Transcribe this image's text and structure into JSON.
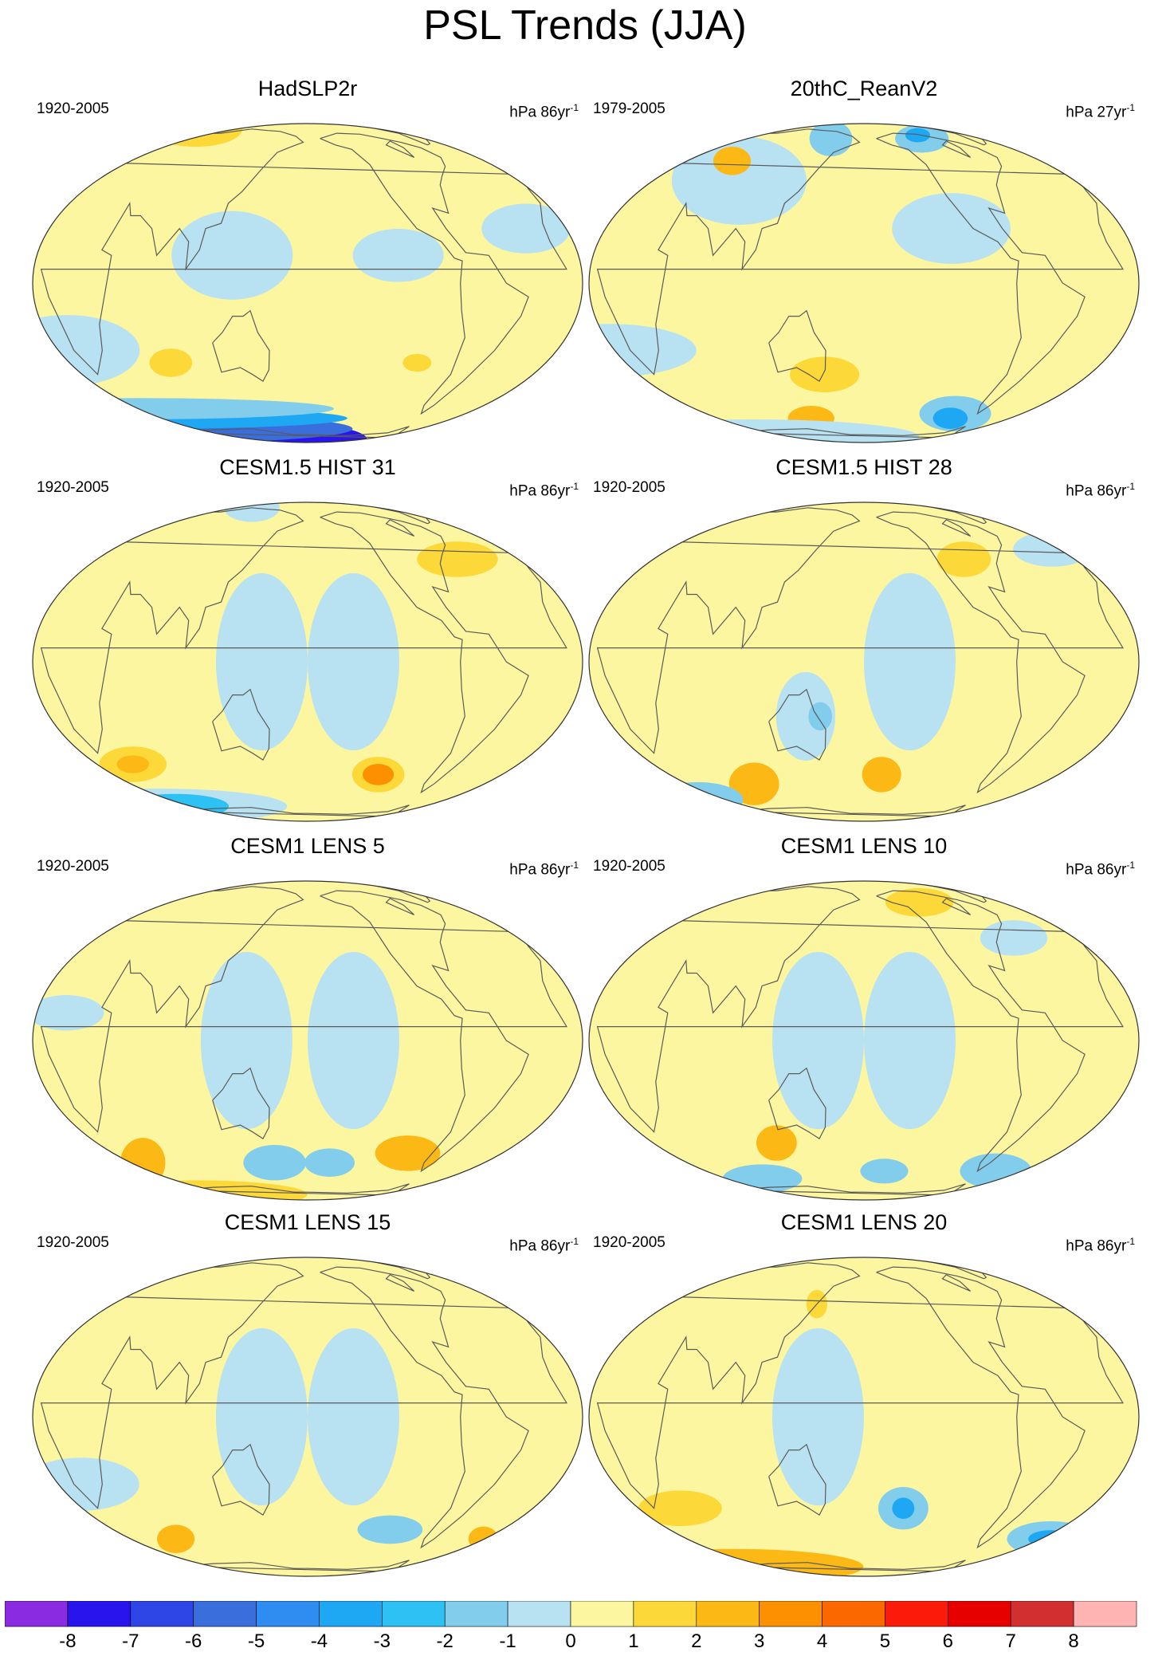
{
  "title": "PSL Trends (JJA)",
  "colors": {
    "levels": [
      -8,
      -7,
      -6,
      -5,
      -4,
      -3,
      -2,
      -1,
      0,
      1,
      2,
      3,
      4,
      5,
      6,
      7,
      8
    ],
    "fills": [
      "#8a2be2",
      "#2a14ee",
      "#2e46e6",
      "#3a6edc",
      "#2f8cf0",
      "#1ea8f4",
      "#2ec2f4",
      "#82ccec",
      "#b8e2f2",
      "#fdf6a0",
      "#fcd838",
      "#fcb814",
      "#fc9000",
      "#fc6800",
      "#fc1a0a",
      "#e60000",
      "#d23030",
      "#ffb4b4"
    ],
    "coast": "#5a5a5a"
  },
  "panels": [
    {
      "title": "HadSLP2r",
      "period": "1920-2005",
      "units_base": "hPa 86yr",
      "units_exp": "-1",
      "blobs": [
        {
          "lon": 0,
          "lat": -78,
          "rx": 180,
          "ry": 12,
          "lev": -8
        },
        {
          "lon": 0,
          "lat": -66,
          "rx": 180,
          "ry": 8,
          "lev": -6
        },
        {
          "lon": 10,
          "lat": -58,
          "rx": 175,
          "ry": 6,
          "lev": -4
        },
        {
          "lon": 20,
          "lat": -52,
          "rx": 160,
          "ry": 6,
          "lev": -2
        },
        {
          "lon": 10,
          "lat": -25,
          "rx": 50,
          "ry": 20,
          "lev": -1
        },
        {
          "lon": -30,
          "lat": 20,
          "rx": 30,
          "ry": 14,
          "lev": -1
        },
        {
          "lon": 0,
          "lat": 75,
          "rx": 50,
          "ry": 10,
          "lev": 1
        },
        {
          "lon": -120,
          "lat": 10,
          "rx": 30,
          "ry": 15,
          "lev": -1
        },
        {
          "lon": 130,
          "lat": 10,
          "rx": 40,
          "ry": 25,
          "lev": -1
        },
        {
          "lon": -100,
          "lat": -30,
          "rx": 10,
          "ry": 5,
          "lev": 1
        },
        {
          "lon": 80,
          "lat": -30,
          "rx": 15,
          "ry": 8,
          "lev": 1
        }
      ]
    },
    {
      "title": "20thC_ReanV2",
      "period": "1979-2005",
      "units_base": "hPa 27yr",
      "units_exp": "-1",
      "blobs": [
        {
          "lon": -110,
          "lat": 65,
          "rx": 25,
          "ry": 8,
          "lev": -2
        },
        {
          "lon": -110,
          "lat": 68,
          "rx": 12,
          "ry": 4,
          "lev": -4
        },
        {
          "lon": 140,
          "lat": 65,
          "rx": 20,
          "ry": 10,
          "lev": -2
        },
        {
          "lon": 80,
          "lat": 40,
          "rx": 50,
          "ry": 25,
          "lev": -1
        },
        {
          "lon": -120,
          "lat": 20,
          "rx": 40,
          "ry": 20,
          "lev": -1
        },
        {
          "lon": 0,
          "lat": -25,
          "rx": 60,
          "ry": 15,
          "lev": -1
        },
        {
          "lon": -90,
          "lat": -55,
          "rx": 30,
          "ry": 10,
          "lev": -2
        },
        {
          "lon": -90,
          "lat": -58,
          "rx": 15,
          "ry": 6,
          "lev": -4
        },
        {
          "lon": 150,
          "lat": -35,
          "rx": 25,
          "ry": 10,
          "lev": 1
        },
        {
          "lon": 125,
          "lat": -58,
          "rx": 20,
          "ry": 7,
          "lev": 2
        },
        {
          "lon": 60,
          "lat": 50,
          "rx": 15,
          "ry": 8,
          "lev": 2
        },
        {
          "lon": 0,
          "lat": -75,
          "rx": 180,
          "ry": 10,
          "lev": -1
        }
      ]
    },
    {
      "title": "CESM1.5 HIST 31",
      "period": "1920-2005",
      "units_base": "hPa 86yr",
      "units_exp": "-1",
      "blobs": [
        {
          "lon": -120,
          "lat": -45,
          "rx": 20,
          "ry": 10,
          "lev": 1
        },
        {
          "lon": -120,
          "lat": -45,
          "rx": 12,
          "ry": 6,
          "lev": 3
        },
        {
          "lon": 40,
          "lat": -40,
          "rx": 25,
          "ry": 10,
          "lev": 1
        },
        {
          "lon": 40,
          "lat": -40,
          "rx": 12,
          "ry": 5,
          "lev": 2
        },
        {
          "lon": 0,
          "lat": -65,
          "rx": 120,
          "ry": 10,
          "lev": -1
        },
        {
          "lon": 20,
          "lat": -65,
          "rx": 50,
          "ry": 7,
          "lev": -3
        },
        {
          "lon": -150,
          "lat": 0,
          "rx": 30,
          "ry": 50,
          "lev": -1
        },
        {
          "lon": 150,
          "lat": 0,
          "rx": 30,
          "ry": 50,
          "lev": -1
        },
        {
          "lon": -60,
          "lat": 40,
          "rx": 30,
          "ry": 10,
          "lev": 1
        },
        {
          "lon": 90,
          "lat": 75,
          "rx": 30,
          "ry": 8,
          "lev": -1
        }
      ]
    },
    {
      "title": "CESM1.5 HIST 28",
      "period": "1920-2005",
      "units_base": "hPa 86yr",
      "units_exp": "-1",
      "blobs": [
        {
          "lon": -165,
          "lat": -45,
          "rx": 15,
          "ry": 10,
          "lev": 2
        },
        {
          "lon": 80,
          "lat": -50,
          "rx": 20,
          "ry": 12,
          "lev": 2
        },
        {
          "lon": 0,
          "lat": -60,
          "rx": 40,
          "ry": 10,
          "lev": -2
        },
        {
          "lon": -150,
          "lat": 0,
          "rx": 30,
          "ry": 50,
          "lev": -1
        },
        {
          "lon": 140,
          "lat": -20,
          "rx": 20,
          "ry": 25,
          "lev": -1
        },
        {
          "lon": 150,
          "lat": -20,
          "rx": 8,
          "ry": 8,
          "lev": -2
        },
        {
          "lon": -20,
          "lat": 45,
          "rx": 30,
          "ry": 10,
          "lev": -1
        },
        {
          "lon": -100,
          "lat": 40,
          "rx": 20,
          "ry": 10,
          "lev": 1
        }
      ]
    },
    {
      "title": "CESM1 LENS 5",
      "period": "1920-2005",
      "units_base": "hPa 86yr",
      "units_exp": "-1",
      "blobs": [
        {
          "lon": -95,
          "lat": -45,
          "rx": 25,
          "ry": 10,
          "lev": 2
        },
        {
          "lon": 30,
          "lat": -50,
          "rx": 18,
          "ry": 14,
          "lev": 2
        },
        {
          "lon": 150,
          "lat": -50,
          "rx": 25,
          "ry": 10,
          "lev": -2
        },
        {
          "lon": -160,
          "lat": -50,
          "rx": 20,
          "ry": 8,
          "lev": -2
        },
        {
          "lon": 0,
          "lat": -75,
          "rx": 120,
          "ry": 8,
          "lev": 1
        },
        {
          "lon": -150,
          "lat": 0,
          "rx": 30,
          "ry": 50,
          "lev": -1
        },
        {
          "lon": 140,
          "lat": 0,
          "rx": 30,
          "ry": 50,
          "lev": -1
        },
        {
          "lon": 20,
          "lat": 10,
          "rx": 25,
          "ry": 10,
          "lev": -1
        }
      ]
    },
    {
      "title": "CESM1 LENS 10",
      "period": "1920-2005",
      "units_base": "hPa 86yr",
      "units_exp": "-1",
      "blobs": [
        {
          "lon": -60,
          "lat": 40,
          "rx": 25,
          "ry": 10,
          "lev": -1
        },
        {
          "lon": -120,
          "lat": 60,
          "rx": 30,
          "ry": 8,
          "lev": 1
        },
        {
          "lon": -50,
          "lat": -55,
          "rx": 30,
          "ry": 10,
          "lev": -2
        },
        {
          "lon": 70,
          "lat": -60,
          "rx": 35,
          "ry": 8,
          "lev": -2
        },
        {
          "lon": 110,
          "lat": -40,
          "rx": 15,
          "ry": 10,
          "lev": 2
        },
        {
          "lon": -160,
          "lat": -55,
          "rx": 20,
          "ry": 7,
          "lev": -2
        },
        {
          "lon": -150,
          "lat": 0,
          "rx": 30,
          "ry": 50,
          "lev": -1
        },
        {
          "lon": 150,
          "lat": 0,
          "rx": 30,
          "ry": 50,
          "lev": -1
        }
      ]
    },
    {
      "title": "CESM1 LENS 15",
      "period": "1920-2005",
      "units_base": "hPa 86yr",
      "units_exp": "-1",
      "blobs": [
        {
          "lon": -110,
          "lat": -45,
          "rx": 25,
          "ry": 8,
          "lev": -2
        },
        {
          "lon": 20,
          "lat": -25,
          "rx": 40,
          "ry": 15,
          "lev": -1
        },
        {
          "lon": 60,
          "lat": -50,
          "rx": 15,
          "ry": 8,
          "lev": 2
        },
        {
          "lon": -20,
          "lat": -50,
          "rx": 12,
          "ry": 7,
          "lev": 2
        },
        {
          "lon": -150,
          "lat": 0,
          "rx": 30,
          "ry": 50,
          "lev": -1
        },
        {
          "lon": 150,
          "lat": 0,
          "rx": 30,
          "ry": 50,
          "lev": -1
        }
      ]
    },
    {
      "title": "CESM1 LENS 20",
      "period": "1920-2005",
      "units_base": "hPa 86yr",
      "units_exp": "-1",
      "blobs": [
        {
          "lon": -150,
          "lat": -35,
          "rx": 18,
          "ry": 12,
          "lev": -2
        },
        {
          "lon": -150,
          "lat": -35,
          "rx": 8,
          "ry": 6,
          "lev": -4
        },
        {
          "lon": -10,
          "lat": -50,
          "rx": 35,
          "ry": 10,
          "lev": -2
        },
        {
          "lon": -10,
          "lat": -50,
          "rx": 18,
          "ry": 5,
          "lev": -4
        },
        {
          "lon": 0,
          "lat": -70,
          "rx": 130,
          "ry": 10,
          "lev": 2
        },
        {
          "lon": 40,
          "lat": -35,
          "rx": 30,
          "ry": 10,
          "lev": 1
        },
        {
          "lon": 140,
          "lat": 45,
          "rx": 8,
          "ry": 8,
          "lev": 1
        },
        {
          "lon": 150,
          "lat": 0,
          "rx": 30,
          "ry": 50,
          "lev": -1
        }
      ]
    }
  ],
  "chart_data": {
    "type": "heatmap",
    "title": "PSL Trends (JJA)",
    "colorbar": {
      "labels": [
        "-8",
        "-7",
        "-6",
        "-5",
        "-4",
        "-3",
        "-2",
        "-1",
        "0",
        "1",
        "2",
        "3",
        "4",
        "5",
        "6",
        "7",
        "8"
      ]
    },
    "panels": [
      {
        "title": "HadSLP2r",
        "period": "1920-2005",
        "units": "hPa 86yr-1"
      },
      {
        "title": "20thC_ReanV2",
        "period": "1979-2005",
        "units": "hPa 27yr-1"
      },
      {
        "title": "CESM1.5 HIST 31",
        "period": "1920-2005",
        "units": "hPa 86yr-1"
      },
      {
        "title": "CESM1.5 HIST 28",
        "period": "1920-2005",
        "units": "hPa 86yr-1"
      },
      {
        "title": "CESM1 LENS 5",
        "period": "1920-2005",
        "units": "hPa 86yr-1"
      },
      {
        "title": "CESM1 LENS 10",
        "period": "1920-2005",
        "units": "hPa 86yr-1"
      },
      {
        "title": "CESM1 LENS 15",
        "period": "1920-2005",
        "units": "hPa 86yr-1"
      },
      {
        "title": "CESM1 LENS 20",
        "period": "1920-2005",
        "units": "hPa 86yr-1"
      }
    ]
  }
}
